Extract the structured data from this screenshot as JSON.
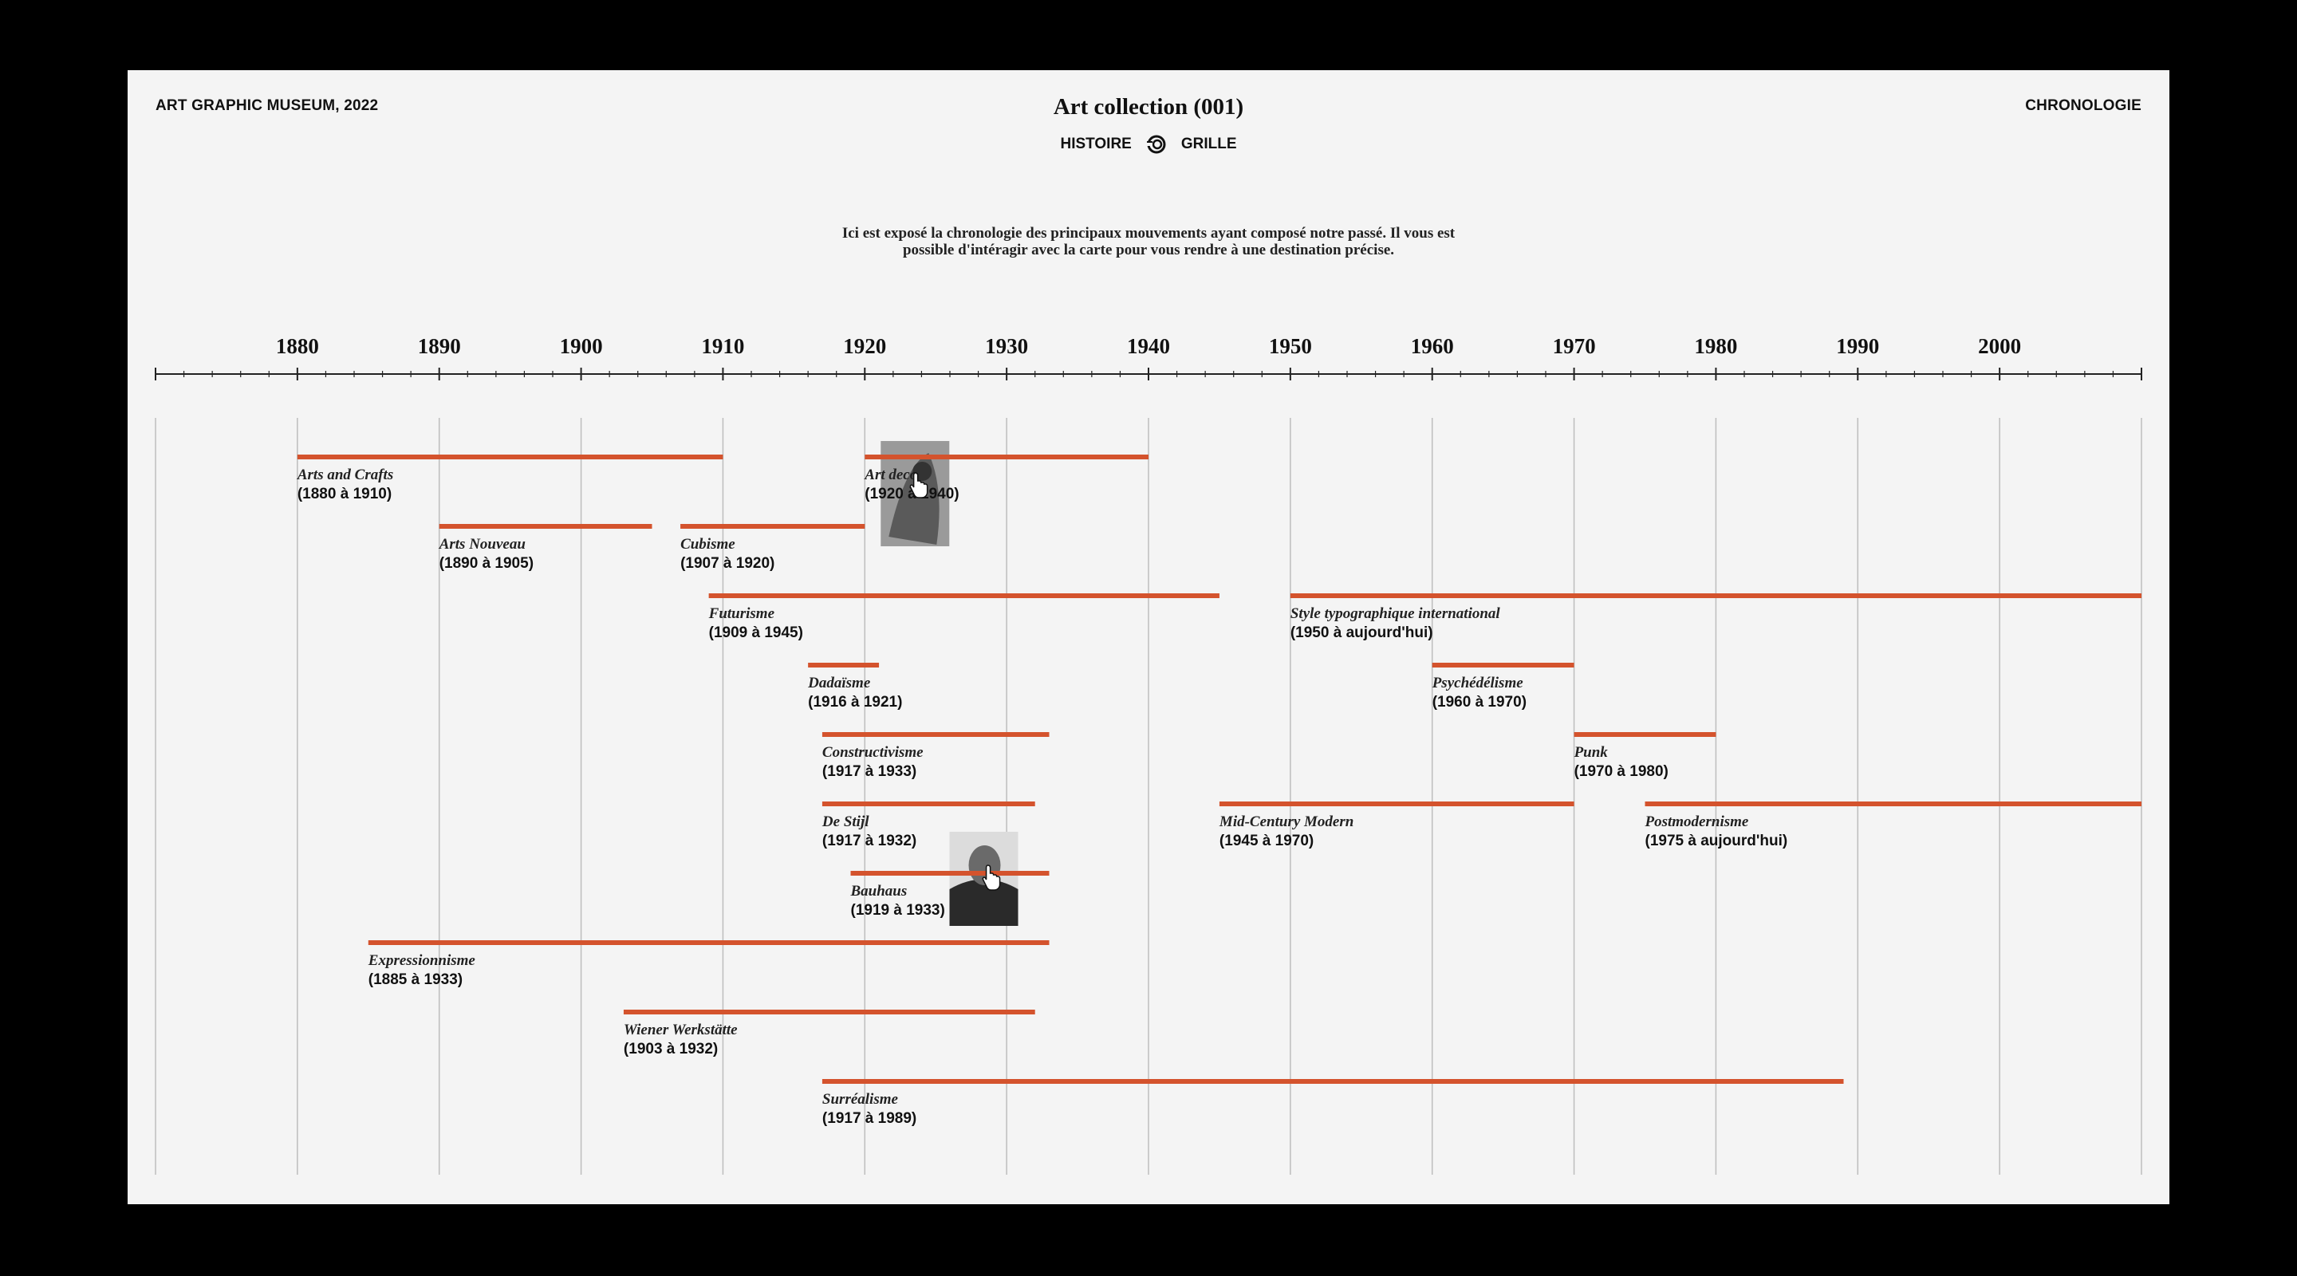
{
  "header": {
    "museum": "ART GRAPHIC MUSEUM,  2022",
    "title": "Art collection (001)",
    "section": "CHRONOLOGIE",
    "views": {
      "left": "HISTOIRE",
      "right": "GRILLE",
      "toggle_icon": "view-toggle-icon"
    }
  },
  "intro": {
    "line1": "Ici est exposé la chronologie des principaux mouvements ayant composé notre passé. Il vous est",
    "line2": "possible d'intéragir avec la carte pour vous rendre à une destination précise."
  },
  "colors": {
    "bar": "#d4532d",
    "background": "#f4f4f4",
    "frame": "#000000"
  },
  "axis": {
    "start": 1870,
    "end": 2010,
    "labels": [
      1880,
      1890,
      1900,
      1910,
      1920,
      1930,
      1940,
      1950,
      1960,
      1970,
      1980,
      1990,
      2000
    ]
  },
  "movements": [
    {
      "name": "Arts and Crafts",
      "range": "(1880 à 1910)",
      "start": 1880,
      "end": 1910,
      "row": 0
    },
    {
      "name": "Art deco",
      "range": "(1920 à 1940)",
      "start": 1920,
      "end": 1940,
      "row": 0
    },
    {
      "name": "Arts Nouveau",
      "range": "(1890 à 1905)",
      "start": 1890,
      "end": 1905,
      "row": 1
    },
    {
      "name": "Cubisme",
      "range": "(1907 à 1920)",
      "start": 1907,
      "end": 1920,
      "row": 1
    },
    {
      "name": "Futurisme",
      "range": "(1909 à 1945)",
      "start": 1909,
      "end": 1945,
      "row": 2
    },
    {
      "name": "Style typographique international",
      "range": "(1950 à aujourd'hui)",
      "start": 1950,
      "end": 2010,
      "row": 2
    },
    {
      "name": "Dadaïsme",
      "range": "(1916 à 1921)",
      "start": 1916,
      "end": 1921,
      "row": 3
    },
    {
      "name": "Psychédélisme",
      "range": "(1960 à 1970)",
      "start": 1960,
      "end": 1970,
      "row": 3
    },
    {
      "name": "Constructivisme",
      "range": "(1917 à 1933)",
      "start": 1917,
      "end": 1933,
      "row": 4
    },
    {
      "name": "Punk",
      "range": "(1970 à 1980)",
      "start": 1970,
      "end": 1980,
      "row": 4
    },
    {
      "name": "De Stijl",
      "range": "(1917 à 1932)",
      "start": 1917,
      "end": 1932,
      "row": 5
    },
    {
      "name": "Mid-Century Modern",
      "range": "(1945 à 1970)",
      "start": 1945,
      "end": 1970,
      "row": 5
    },
    {
      "name": "Postmodernisme",
      "range": "(1975 à aujourd'hui)",
      "start": 1975,
      "end": 2010,
      "row": 5
    },
    {
      "name": "Bauhaus",
      "range": "(1919 à 1933)",
      "start": 1919,
      "end": 1933,
      "row": 6
    },
    {
      "name": "Expressionnisme",
      "range": "(1885 à 1933)",
      "start": 1885,
      "end": 1933,
      "row": 7
    },
    {
      "name": "Wiener Werkstätte",
      "range": "(1903 à 1932)",
      "start": 1903,
      "end": 1932,
      "row": 8
    },
    {
      "name": "Surréalisme",
      "range": "(1917 à 1989)",
      "start": 1917,
      "end": 1989,
      "row": 9
    }
  ],
  "hover_previews": [
    {
      "movement": "Art deco",
      "icon": "artwork-thumbnail-icon"
    },
    {
      "movement": "Bauhaus",
      "icon": "portrait-thumbnail-icon"
    }
  ]
}
